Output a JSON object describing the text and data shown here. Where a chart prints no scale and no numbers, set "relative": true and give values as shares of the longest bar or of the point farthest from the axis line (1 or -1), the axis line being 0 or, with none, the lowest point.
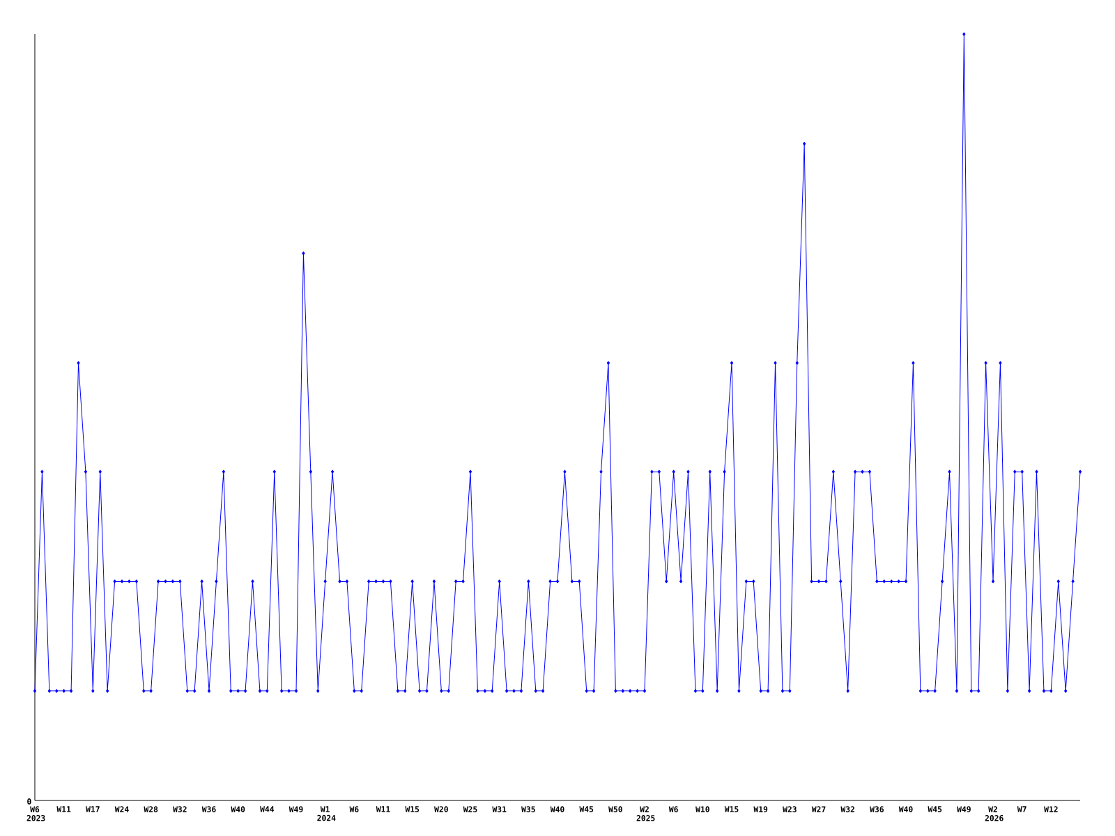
{
  "chart_data": {
    "type": "line",
    "relative": true,
    "color": "#0000ff",
    "marker": "diamond",
    "line_style": "solid",
    "annotations": [
      "0"
    ],
    "categories": [
      "W6 2023",
      null,
      null,
      null,
      "W11",
      null,
      null,
      null,
      "W17",
      null,
      null,
      null,
      "W24",
      null,
      null,
      null,
      "W28",
      null,
      null,
      null,
      "W32",
      null,
      null,
      null,
      "W36",
      null,
      null,
      null,
      "W40",
      null,
      null,
      null,
      "W44",
      null,
      null,
      null,
      "W49",
      null,
      null,
      null,
      "W1 2024",
      null,
      null,
      null,
      "W6",
      null,
      null,
      null,
      "W11",
      null,
      null,
      null,
      "W15",
      null,
      null,
      null,
      "W20",
      null,
      null,
      null,
      "W25",
      null,
      null,
      null,
      "W31",
      null,
      null,
      null,
      "W35",
      null,
      null,
      null,
      "W40",
      null,
      null,
      null,
      "W45",
      null,
      null,
      null,
      "W50",
      null,
      null,
      null,
      "W2 2025",
      null,
      null,
      null,
      "W6",
      null,
      null,
      null,
      "W10",
      null,
      null,
      null,
      "W15",
      null,
      null,
      null,
      "W19",
      null,
      null,
      null,
      "W23",
      null,
      null,
      null,
      "W27",
      null,
      null,
      null,
      "W32",
      null,
      null,
      null,
      "W36",
      null,
      null,
      null,
      "W40",
      null,
      null,
      null,
      "W45",
      null,
      null,
      null,
      "W49",
      null,
      null,
      null,
      "W2 2026",
      null,
      null,
      null,
      "W7",
      null,
      null,
      null,
      "W12",
      null,
      null,
      null,
      null
    ],
    "values": [
      0.143,
      0.429,
      0.143,
      0.143,
      0.143,
      0.143,
      0.571,
      0.429,
      0.143,
      0.429,
      0.143,
      0.286,
      0.286,
      0.286,
      0.286,
      0.143,
      0.143,
      0.286,
      0.286,
      0.286,
      0.286,
      0.143,
      0.143,
      0.286,
      0.143,
      0.286,
      0.429,
      0.143,
      0.143,
      0.143,
      0.286,
      0.143,
      0.143,
      0.429,
      0.143,
      0.143,
      0.143,
      0.714,
      0.429,
      0.143,
      0.286,
      0.429,
      0.286,
      0.286,
      0.143,
      0.143,
      0.286,
      0.286,
      0.286,
      0.286,
      0.143,
      0.143,
      0.286,
      0.143,
      0.143,
      0.286,
      0.143,
      0.143,
      0.286,
      0.286,
      0.429,
      0.143,
      0.143,
      0.143,
      0.286,
      0.143,
      0.143,
      0.143,
      0.286,
      0.143,
      0.143,
      0.286,
      0.286,
      0.429,
      0.286,
      0.286,
      0.143,
      0.143,
      0.429,
      0.571,
      0.143,
      0.143,
      0.143,
      0.143,
      0.143,
      0.429,
      0.429,
      0.286,
      0.429,
      0.286,
      0.429,
      0.143,
      0.143,
      0.429,
      0.143,
      0.429,
      0.571,
      0.143,
      0.286,
      0.286,
      0.143,
      0.143,
      0.571,
      0.143,
      0.143,
      0.571,
      0.857,
      0.286,
      0.286,
      0.286,
      0.429,
      0.286,
      0.143,
      0.429,
      0.429,
      0.429,
      0.286,
      0.286,
      0.286,
      0.286,
      0.286,
      0.571,
      0.143,
      0.143,
      0.143,
      0.286,
      0.429,
      0.143,
      1,
      0.143,
      0.143,
      0.571,
      0.286,
      0.571,
      0.143,
      0.429,
      0.429,
      0.143,
      0.429,
      0.143,
      0.143,
      0.286,
      0.143,
      0.286,
      0.429
    ]
  }
}
